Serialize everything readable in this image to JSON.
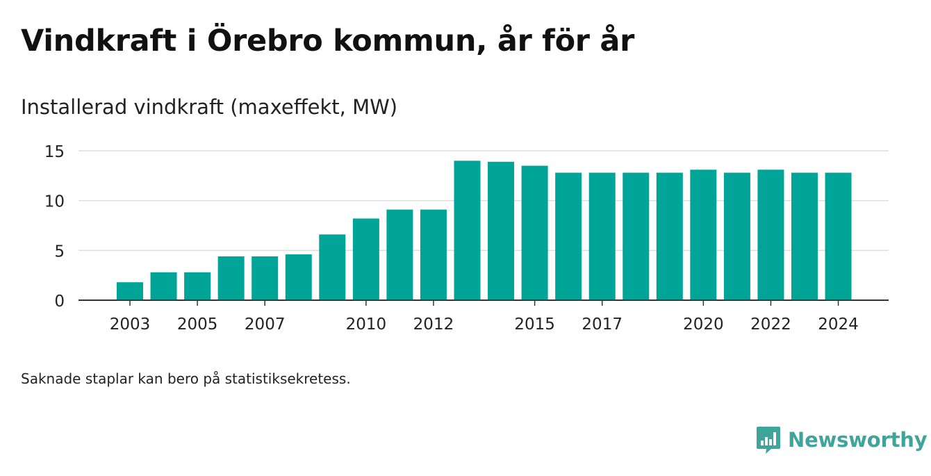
{
  "title": "Vindkraft i Örebro kommun, år för år",
  "subtitle": "Installerad vindkraft (maxeffekt, MW)",
  "footnote": "Saknade staplar kan bero på statistiksekretess.",
  "brand": {
    "name": "Newsworthy",
    "icon": "newsworthy-logo-icon"
  },
  "colors": {
    "bar": "#00a598",
    "grid": "#dddddd",
    "axis": "#333333",
    "brand": "#3fa59b"
  },
  "chart_data": {
    "type": "bar",
    "categories": [
      "2003",
      "2004",
      "2005",
      "2006",
      "2007",
      "2008",
      "2009",
      "2010",
      "2011",
      "2012",
      "2013",
      "2014",
      "2015",
      "2016",
      "2017",
      "2018",
      "2019",
      "2020",
      "2021",
      "2022",
      "2023",
      "2024"
    ],
    "values": [
      1.8,
      2.8,
      2.8,
      4.4,
      4.4,
      4.6,
      6.6,
      8.2,
      9.1,
      9.1,
      14.0,
      13.9,
      13.5,
      12.8,
      12.8,
      12.8,
      12.8,
      13.1,
      12.8,
      13.1,
      12.8,
      12.8
    ],
    "x_tick_labels": [
      "2003",
      "2005",
      "2007",
      "2010",
      "2012",
      "2015",
      "2017",
      "2020",
      "2022",
      "2024"
    ],
    "y_ticks": [
      0,
      5,
      10,
      15
    ],
    "ylim": [
      0,
      15
    ],
    "grid": true,
    "legend": false
  }
}
